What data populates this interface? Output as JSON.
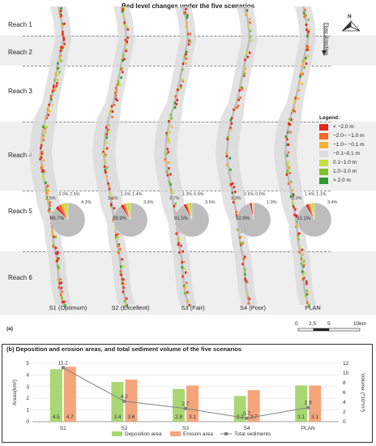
{
  "title": "Bed level changes under the five scenarios",
  "reaches": [
    "Reach 1",
    "Reach 2",
    "Reach 3",
    "Reach 4",
    "Reach 5",
    "Reach 6"
  ],
  "scenarios": [
    "S1 (Optimum)",
    "S2 (Excellent)",
    "S3 (Fair)",
    "S4 (Poor)",
    "PLAN"
  ],
  "north_label": "N",
  "flow_label": "Flow direction",
  "legend": {
    "title": "Legend:",
    "items": [
      {
        "label": "< −2.0 m",
        "color": "#e8261e"
      },
      {
        "label": "−2.0~ −1.0 m",
        "color": "#f36b21"
      },
      {
        "label": "−1.0~ −0.1 m",
        "color": "#f9b132"
      },
      {
        "label": "−0.1~0.1 m",
        "color": "#dcdcdc"
      },
      {
        "label": "0.1~1.0 m",
        "color": "#c6e03c"
      },
      {
        "label": "1.0~2.0 m",
        "color": "#7cc22e"
      },
      {
        "label": "> 2.0 m",
        "color": "#2f9a2a"
      }
    ]
  },
  "pies": [
    {
      "labels": [
        "3.5%",
        "3.0%",
        "2.5%",
        "4.3%",
        "86.7%"
      ]
    },
    {
      "labels": [
        "3.1%",
        "1.6%",
        "1.4%",
        "3.8%",
        "89.9%"
      ]
    },
    {
      "labels": [
        "2.7%",
        "1.3%",
        "0.9%",
        "3.6%",
        "91.5%"
      ]
    },
    {
      "labels": [
        "2.3%",
        "0.6%",
        "0.0%",
        "1.0%",
        "92.9%"
      ]
    },
    {
      "labels": [
        "3.0%",
        "1.4%",
        "1.1%",
        "3.4%",
        "91.1%"
      ]
    }
  ],
  "panel_a_label": "(a)",
  "scalebar": {
    "ticks": [
      "0",
      "2.5",
      "5",
      "10km"
    ]
  },
  "panel_b": {
    "title": "(b) Deposition and erosion areas, and total sediment volume of the five scenarios",
    "ylabel_left": "Areas(km²)",
    "ylabel_right": "Volume (*10⁶m³)",
    "yticks_left": [
      "0",
      "1",
      "2",
      "3",
      "4",
      "5"
    ],
    "yticks_right": [
      "0",
      "2",
      "4",
      "6",
      "8",
      "10",
      "12"
    ],
    "legend": [
      "Deposition area",
      "Erosion area",
      "Total sediments"
    ]
  },
  "chart_data": {
    "type": "bar",
    "title": "(b) Deposition and erosion areas, and total sediment volume of the five scenarios",
    "categories": [
      "S1",
      "S2",
      "S3",
      "S4",
      "PLAN"
    ],
    "series": [
      {
        "name": "Deposition area",
        "type": "bar",
        "axis": "left",
        "color": "#a9d774",
        "values": [
          4.5,
          3.4,
          2.8,
          2.2,
          3.1
        ],
        "labels": [
          "4.5",
          "3.4",
          "2.8",
          "2.2",
          "3.1"
        ]
      },
      {
        "name": "Erosion area",
        "type": "bar",
        "axis": "left",
        "color": "#f4a57c",
        "values": [
          4.7,
          3.6,
          3.1,
          2.7,
          3.1
        ],
        "labels": [
          "4.7",
          "3.6",
          "3.1",
          "2.7",
          "3.1"
        ]
      },
      {
        "name": "Total sediments",
        "type": "line",
        "axis": "right",
        "color": "#808080",
        "values": [
          11.1,
          4.2,
          2.7,
          0.7,
          2.9
        ],
        "labels": [
          "11.1",
          "4.2",
          "2.7",
          "0.7",
          "2.9"
        ]
      }
    ],
    "ylabel": "Areas(km²)",
    "y2label": "Volume (*10⁶m³)",
    "ylim": [
      0,
      5
    ],
    "y2lim": [
      0,
      12
    ],
    "legend_position": "bottom"
  }
}
